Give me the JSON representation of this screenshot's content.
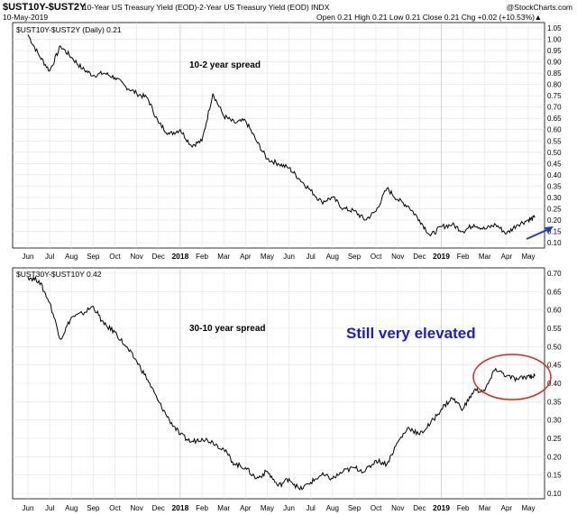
{
  "header": {
    "symbol": "$UST10Y-$UST2Y",
    "description": "10-Year US Treasury Yield (EOD)-2-Year US Treasury Yield (EOD) INDX",
    "watermark": "@StockCharts.com",
    "date": "10-May-2019",
    "quote": "Open 0.21  High 0.21  Low 0.21  Close 0.21  Chg +0.02 (+10.53%)",
    "quote_arrow": "▲"
  },
  "colors": {
    "line": "#000000",
    "grid": "#e2e2e2",
    "arrow": "#1f3fbf",
    "circle": "#e02020",
    "big_annotation": "#1b1bd6"
  },
  "chart_data": [
    {
      "type": "line",
      "legend": "$UST10Y-$UST2Y (Daily) 0.21",
      "annotation": "10-2 year spread",
      "ylim": [
        0.1,
        1.05
      ],
      "ytick_labels": [
        "1.05",
        "1.00",
        "0.95",
        "0.90",
        "0.85",
        "0.80",
        "0.75",
        "0.70",
        "0.65",
        "0.60",
        "0.55",
        "0.50",
        "0.45",
        "0.40",
        "0.35",
        "0.30",
        "0.25",
        "0.20",
        "0.15",
        "0.10"
      ],
      "x_labels": [
        "Jun",
        "Jul",
        "Aug",
        "Sep",
        "Oct",
        "Nov",
        "Dec",
        "2018",
        "Feb",
        "Mar",
        "Apr",
        "May",
        "Jun",
        "Jul",
        "Aug",
        "Sep",
        "Oct",
        "Nov",
        "Dec",
        "2019",
        "Feb",
        "Mar",
        "Apr",
        "May"
      ],
      "x_bold": [
        "2018",
        "2019"
      ],
      "x": [
        0,
        0.5,
        1,
        1.5,
        2,
        2.5,
        3,
        3.5,
        4,
        4.5,
        5,
        5.5,
        6,
        6.5,
        7,
        7.5,
        8,
        8.5,
        9,
        9.5,
        10,
        10.5,
        11,
        11.5,
        12,
        12.5,
        13,
        13.5,
        14,
        14.5,
        15,
        15.5,
        16,
        16.5,
        17,
        17.5,
        18,
        18.5,
        19,
        19.5,
        20,
        20.5,
        21,
        21.5,
        22,
        22.5,
        23,
        23.3
      ],
      "values": [
        1.02,
        0.93,
        0.86,
        0.97,
        0.92,
        0.87,
        0.84,
        0.85,
        0.83,
        0.79,
        0.76,
        0.74,
        0.63,
        0.58,
        0.6,
        0.53,
        0.55,
        0.76,
        0.66,
        0.63,
        0.64,
        0.55,
        0.47,
        0.45,
        0.43,
        0.38,
        0.33,
        0.28,
        0.3,
        0.25,
        0.24,
        0.2,
        0.24,
        0.34,
        0.29,
        0.26,
        0.2,
        0.13,
        0.17,
        0.18,
        0.15,
        0.18,
        0.16,
        0.18,
        0.14,
        0.18,
        0.2,
        0.21
      ]
    },
    {
      "type": "line",
      "legend": "$UST30Y-$UST10Y 0.42",
      "annotation": "30-10 year spread",
      "big_annotation": "Still very elevated",
      "ylim": [
        0.1,
        0.7
      ],
      "ytick_labels": [
        "0.70",
        "0.65",
        "0.60",
        "0.55",
        "0.50",
        "0.45",
        "0.40",
        "0.35",
        "0.30",
        "0.25",
        "0.20",
        "0.15",
        "0.10"
      ],
      "x_labels": [
        "Jun",
        "Jul",
        "Aug",
        "Sep",
        "Oct",
        "Nov",
        "Dec",
        "2018",
        "Feb",
        "Mar",
        "Apr",
        "May",
        "Jun",
        "Jul",
        "Aug",
        "Sep",
        "Oct",
        "Nov",
        "Dec",
        "2019",
        "Feb",
        "Mar",
        "Apr",
        "May"
      ],
      "x_bold": [
        "2018",
        "2019"
      ],
      "x": [
        0,
        0.5,
        1,
        1.5,
        2,
        2.5,
        3,
        3.5,
        4,
        4.5,
        5,
        5.5,
        6,
        6.5,
        7,
        7.5,
        8,
        8.5,
        9,
        9.5,
        10,
        10.5,
        11,
        11.5,
        12,
        12.5,
        13,
        13.5,
        14,
        14.5,
        15,
        15.5,
        16,
        16.5,
        17,
        17.5,
        18,
        18.5,
        19,
        19.5,
        20,
        20.5,
        21,
        21.5,
        22,
        22.5,
        23,
        23.3
      ],
      "values": [
        0.69,
        0.68,
        0.62,
        0.52,
        0.58,
        0.59,
        0.61,
        0.56,
        0.54,
        0.5,
        0.46,
        0.41,
        0.35,
        0.3,
        0.26,
        0.24,
        0.25,
        0.24,
        0.22,
        0.18,
        0.17,
        0.14,
        0.16,
        0.12,
        0.14,
        0.11,
        0.13,
        0.15,
        0.14,
        0.16,
        0.17,
        0.16,
        0.19,
        0.18,
        0.24,
        0.28,
        0.26,
        0.29,
        0.33,
        0.36,
        0.33,
        0.38,
        0.38,
        0.44,
        0.42,
        0.41,
        0.42,
        0.42
      ]
    }
  ]
}
